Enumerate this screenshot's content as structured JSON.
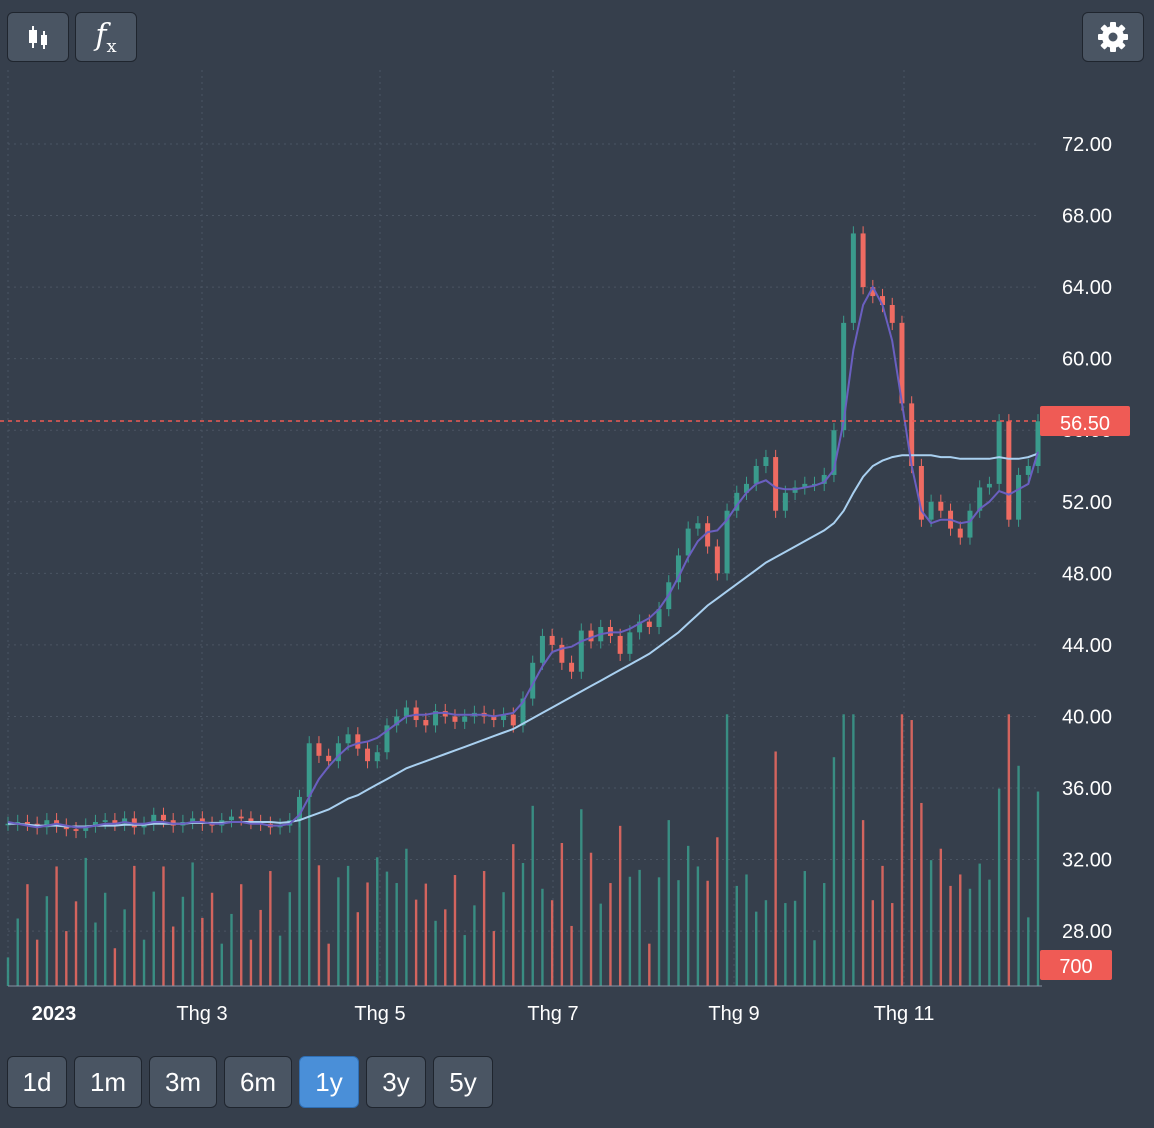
{
  "toolbar": {
    "candles_icon": "candlestick-icon",
    "fx_icon": "function-icon",
    "fx_label": "f",
    "fx_sub": "x",
    "settings_icon": "gear-icon"
  },
  "ranges": [
    {
      "label": "1d",
      "active": false
    },
    {
      "label": "1m",
      "active": false
    },
    {
      "label": "3m",
      "active": false
    },
    {
      "label": "6m",
      "active": false
    },
    {
      "label": "1y",
      "active": true
    },
    {
      "label": "3y",
      "active": false
    },
    {
      "label": "5y",
      "active": false
    }
  ],
  "colors": {
    "background": "#363f4c",
    "up": "#3a9b8c",
    "down": "#ef6b62",
    "ma_fast": "#6a5fc0",
    "ma_slow": "#a9d0f0",
    "last_price_line": "#ef5b55",
    "axis_text": "#ffffff"
  },
  "chart_data": {
    "type": "candlestick",
    "y_ticks": [
      "72.00",
      "68.00",
      "64.00",
      "60.00",
      "56.00",
      "52.00",
      "48.00",
      "44.00",
      "40.00",
      "36.00",
      "32.00",
      "28.00"
    ],
    "ylim": [
      24,
      76
    ],
    "x_ticks": [
      "2023",
      "Thg 3",
      "Thg 5",
      "Thg 7",
      "Thg 9",
      "Thg 11"
    ],
    "last_price_label": "56.50",
    "last_price": 56.5,
    "last_volume_label": "700",
    "grid": true,
    "series": [
      {
        "name": "",
        "kind": "price_close",
        "values": [
          34.0,
          34.1,
          34.0,
          33.8,
          34.2,
          33.9,
          33.7,
          33.6,
          33.9,
          34.1,
          34.2,
          34.0,
          34.3,
          33.8,
          34.0,
          34.5,
          34.2,
          33.9,
          34.1,
          34.3,
          34.0,
          33.9,
          34.2,
          34.4,
          34.3,
          34.1,
          34.0,
          33.8,
          33.9,
          34.2,
          35.5,
          38.5,
          37.8,
          37.5,
          38.5,
          39.0,
          38.2,
          37.5,
          38.0,
          39.5,
          40.0,
          40.5,
          39.8,
          39.5,
          40.3,
          40.0,
          39.7,
          40.0,
          40.2,
          40.0,
          39.8,
          40.1,
          39.5,
          41.0,
          43.0,
          44.5,
          44.0,
          43.0,
          42.5,
          44.8,
          44.2,
          45.0,
          44.5,
          43.5,
          44.7,
          45.3,
          45.0,
          46.0,
          47.5,
          49.0,
          50.5,
          50.8,
          49.5,
          48.0,
          51.5,
          52.5,
          53.0,
          54.0,
          54.5,
          51.5,
          52.5,
          52.8,
          53.0,
          53.0,
          53.5,
          56.0,
          62.0,
          67.0,
          64.0,
          63.5,
          63.0,
          62.0,
          57.5,
          54.0,
          51.0,
          52.0,
          51.5,
          50.5,
          50.0,
          51.5,
          52.8,
          53.0,
          56.5,
          51.0,
          53.5,
          54.0,
          56.5
        ]
      },
      {
        "name": "",
        "kind": "ma_fast",
        "values": [
          34.1,
          34.0,
          33.9,
          33.8,
          33.9,
          34.0,
          33.9,
          33.8,
          33.8,
          33.9,
          34.0,
          34.0,
          34.1,
          34.0,
          34.0,
          34.1,
          34.1,
          34.0,
          34.0,
          34.1,
          34.1,
          34.0,
          34.0,
          34.1,
          34.1,
          34.0,
          34.0,
          33.9,
          33.9,
          34.0,
          34.5,
          35.5,
          36.5,
          37.2,
          37.8,
          38.3,
          38.5,
          38.6,
          38.8,
          39.2,
          39.6,
          40.0,
          40.1,
          40.1,
          40.2,
          40.2,
          40.1,
          40.1,
          40.1,
          40.1,
          40.0,
          40.1,
          40.2,
          40.8,
          41.8,
          42.8,
          43.6,
          43.8,
          43.9,
          44.2,
          44.4,
          44.6,
          44.7,
          44.7,
          44.9,
          45.2,
          45.5,
          46.0,
          46.8,
          47.8,
          48.9,
          49.8,
          50.3,
          50.4,
          51.0,
          51.8,
          52.5,
          53.0,
          53.2,
          52.8,
          52.7,
          52.7,
          52.8,
          52.9,
          53.1,
          53.8,
          56.5,
          60.5,
          63.0,
          64.0,
          63.0,
          61.0,
          57.5,
          54.0,
          51.5,
          50.8,
          51.0,
          51.0,
          50.8,
          50.9,
          51.6,
          52.0,
          52.6,
          52.4,
          52.7,
          53.0,
          54.8
        ]
      },
      {
        "name": "",
        "kind": "ma_slow",
        "values": [
          34.0,
          34.0,
          33.95,
          33.9,
          33.9,
          33.9,
          33.85,
          33.85,
          33.85,
          33.9,
          33.9,
          33.9,
          33.95,
          33.95,
          33.95,
          34.0,
          34.0,
          34.0,
          34.0,
          34.05,
          34.05,
          34.05,
          34.05,
          34.1,
          34.1,
          34.1,
          34.1,
          34.1,
          34.05,
          34.1,
          34.2,
          34.4,
          34.6,
          34.8,
          35.1,
          35.4,
          35.6,
          35.9,
          36.2,
          36.5,
          36.8,
          37.1,
          37.3,
          37.5,
          37.7,
          37.9,
          38.1,
          38.3,
          38.5,
          38.7,
          38.9,
          39.1,
          39.3,
          39.6,
          39.9,
          40.2,
          40.5,
          40.8,
          41.1,
          41.4,
          41.7,
          42.0,
          42.3,
          42.6,
          42.9,
          43.2,
          43.5,
          43.9,
          44.3,
          44.7,
          45.2,
          45.7,
          46.2,
          46.6,
          47.0,
          47.4,
          47.8,
          48.2,
          48.6,
          48.9,
          49.2,
          49.5,
          49.8,
          50.1,
          50.4,
          50.8,
          51.5,
          52.5,
          53.4,
          54.0,
          54.3,
          54.5,
          54.6,
          54.6,
          54.6,
          54.6,
          54.5,
          54.5,
          54.4,
          54.4,
          54.4,
          54.4,
          54.5,
          54.4,
          54.4,
          54.5,
          54.7
        ]
      }
    ],
    "volume_ylim": [
      0,
      20
    ]
  }
}
